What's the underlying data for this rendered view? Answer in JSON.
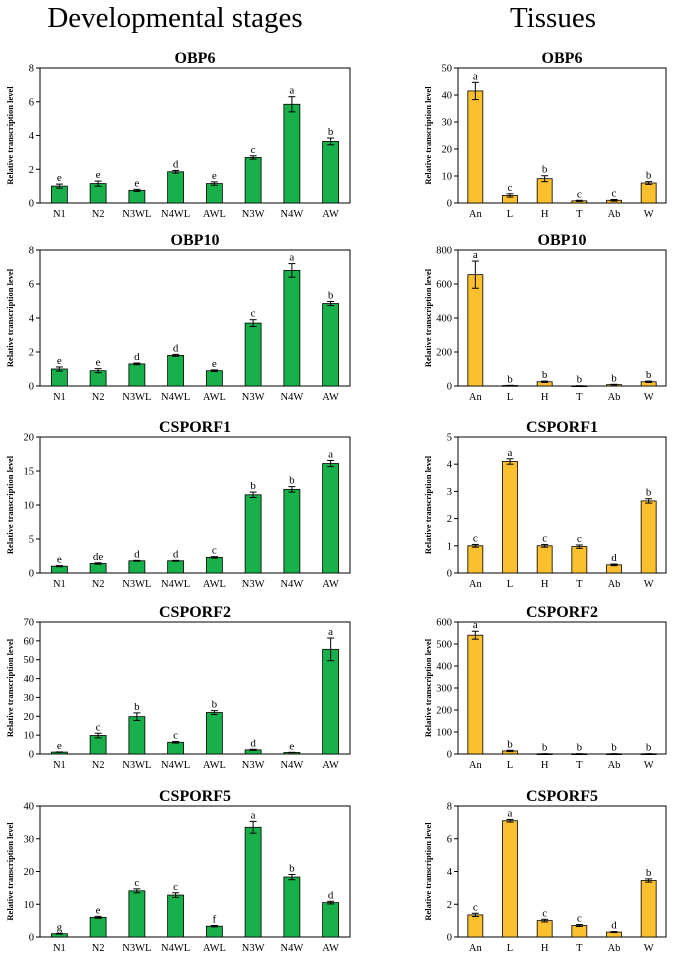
{
  "headers": {
    "left": "Developmental stages",
    "right": "Tissues"
  },
  "colors": {
    "green": "#18b04a",
    "yellow": "#fbc02d"
  },
  "chart_data": [
    {
      "type": "bar",
      "title": "OBP6",
      "ylabel": "Relative transcription level",
      "ylim": [
        0,
        8
      ],
      "yticks": [
        "0",
        "2",
        "4",
        "6",
        "8"
      ],
      "categories": [
        "N1",
        "N2",
        "N3WL",
        "N4WL",
        "AWL",
        "N3W",
        "N4W",
        "AW"
      ],
      "values": [
        1.0,
        1.15,
        0.75,
        1.85,
        1.15,
        2.7,
        5.85,
        3.65
      ],
      "errors": [
        0.12,
        0.15,
        0.06,
        0.08,
        0.1,
        0.1,
        0.45,
        0.2
      ],
      "labels": [
        "e",
        "e",
        "e",
        "d",
        "e",
        "c",
        "a",
        "b"
      ]
    },
    {
      "type": "bar",
      "title": "OBP6",
      "ylabel": "Relative transcription level",
      "ylim": [
        0,
        50
      ],
      "yticks": [
        "0",
        "10",
        "20",
        "30",
        "40",
        "50"
      ],
      "categories": [
        "An",
        "L",
        "H",
        "T",
        "Ab",
        "W"
      ],
      "values": [
        41.5,
        2.8,
        9.0,
        0.8,
        1.0,
        7.4
      ],
      "errors": [
        3.2,
        0.6,
        1.1,
        0.2,
        0.3,
        0.5
      ],
      "labels": [
        "a",
        "c",
        "b",
        "c",
        "c",
        "b"
      ]
    },
    {
      "type": "bar",
      "title": "OBP10",
      "ylabel": "Relative transcription level",
      "ylim": [
        0,
        8
      ],
      "yticks": [
        "0",
        "2",
        "4",
        "6",
        "8"
      ],
      "categories": [
        "N1",
        "N2",
        "N3WL",
        "N4WL",
        "AWL",
        "N3W",
        "N4W",
        "AW"
      ],
      "values": [
        1.0,
        0.9,
        1.3,
        1.8,
        0.9,
        3.7,
        6.8,
        4.85
      ],
      "errors": [
        0.12,
        0.12,
        0.05,
        0.06,
        0.05,
        0.2,
        0.4,
        0.12
      ],
      "labels": [
        "e",
        "e",
        "d",
        "d",
        "e",
        "c",
        "a",
        "b"
      ]
    },
    {
      "type": "bar",
      "title": "OBP10",
      "ylabel": "Relative transcription level",
      "ylim": [
        0,
        800
      ],
      "yticks": [
        "0",
        "200",
        "400",
        "600",
        "800"
      ],
      "categories": [
        "An",
        "L",
        "H",
        "T",
        "Ab",
        "W"
      ],
      "values": [
        655,
        3,
        25,
        1,
        8,
        25
      ],
      "errors": [
        80,
        1,
        4,
        0.5,
        2,
        4
      ],
      "labels": [
        "a",
        "b",
        "b",
        "b",
        "b",
        "b"
      ]
    },
    {
      "type": "bar",
      "title": "CSPORF1",
      "ylabel": "Relative transcription level",
      "ylim": [
        0,
        20
      ],
      "yticks": [
        "0",
        "5",
        "10",
        "15",
        "20"
      ],
      "categories": [
        "N1",
        "N2",
        "N3WL",
        "N4WL",
        "AWL",
        "N3W",
        "N4W",
        "AW"
      ],
      "values": [
        1.0,
        1.4,
        1.8,
        1.8,
        2.3,
        11.5,
        12.3,
        16.1
      ],
      "errors": [
        0.08,
        0.1,
        0.06,
        0.06,
        0.1,
        0.4,
        0.4,
        0.45
      ],
      "labels": [
        "e",
        "de",
        "d",
        "d",
        "c",
        "b",
        "b",
        "a"
      ]
    },
    {
      "type": "bar",
      "title": "CSPORF1",
      "ylabel": "Relative transcription level",
      "ylim": [
        0,
        5
      ],
      "yticks": [
        "0",
        "1",
        "2",
        "3",
        "4",
        "5"
      ],
      "categories": [
        "An",
        "L",
        "H",
        "T",
        "Ab",
        "W"
      ],
      "values": [
        1.0,
        4.1,
        1.0,
        0.97,
        0.3,
        2.65
      ],
      "errors": [
        0.05,
        0.1,
        0.05,
        0.06,
        0.03,
        0.08
      ],
      "labels": [
        "c",
        "a",
        "c",
        "c",
        "d",
        "b"
      ]
    },
    {
      "type": "bar",
      "title": "CSPORF2",
      "ylabel": "Relative transcription level",
      "ylim": [
        0,
        70
      ],
      "yticks": [
        "0",
        "10",
        "20",
        "30",
        "40",
        "50",
        "60",
        "70"
      ],
      "categories": [
        "N1",
        "N2",
        "N3WL",
        "N4WL",
        "AWL",
        "N3W",
        "N4W",
        "AW"
      ],
      "values": [
        1.0,
        9.8,
        19.8,
        6.2,
        22.0,
        2.2,
        0.8,
        55.5
      ],
      "errors": [
        0.1,
        1.2,
        2.0,
        0.4,
        1.0,
        0.3,
        0.1,
        6.0
      ],
      "labels": [
        "e",
        "c",
        "b",
        "c",
        "b",
        "d",
        "e",
        "a"
      ]
    },
    {
      "type": "bar",
      "title": "CSPORF2",
      "ylabel": "Relative transcription level",
      "ylim": [
        0,
        600
      ],
      "yticks": [
        "0",
        "100",
        "200",
        "300",
        "400",
        "500",
        "600"
      ],
      "categories": [
        "An",
        "L",
        "H",
        "T",
        "Ab",
        "W"
      ],
      "values": [
        540,
        14,
        1,
        1,
        1,
        1
      ],
      "errors": [
        18,
        3,
        0.5,
        0.5,
        0.5,
        0.5
      ],
      "labels": [
        "a",
        "b",
        "b",
        "b",
        "b",
        "b"
      ]
    },
    {
      "type": "bar",
      "title": "CSPORF5",
      "ylabel": "Relative transcription level",
      "ylim": [
        0,
        40
      ],
      "yticks": [
        "0",
        "10",
        "20",
        "30",
        "40"
      ],
      "categories": [
        "N1",
        "N2",
        "N3WL",
        "N4WL",
        "AWL",
        "N3W",
        "N4W",
        "AW"
      ],
      "values": [
        1.0,
        6.0,
        14.1,
        12.8,
        3.3,
        33.5,
        18.3,
        10.5
      ],
      "errors": [
        0.1,
        0.3,
        0.6,
        0.7,
        0.2,
        1.8,
        0.8,
        0.4
      ],
      "labels": [
        "g",
        "e",
        "c",
        "c",
        "f",
        "a",
        "b",
        "d"
      ]
    },
    {
      "type": "bar",
      "title": "CSPORF5",
      "ylabel": "Relative transcription level",
      "ylim": [
        0,
        8
      ],
      "yticks": [
        "0",
        "2",
        "4",
        "6",
        "8"
      ],
      "categories": [
        "An",
        "L",
        "H",
        "T",
        "Ab",
        "W"
      ],
      "values": [
        1.35,
        7.1,
        1.0,
        0.7,
        0.3,
        3.45
      ],
      "errors": [
        0.1,
        0.08,
        0.08,
        0.06,
        0.03,
        0.1
      ],
      "labels": [
        "c",
        "a",
        "c",
        "c",
        "d",
        "b"
      ]
    }
  ]
}
